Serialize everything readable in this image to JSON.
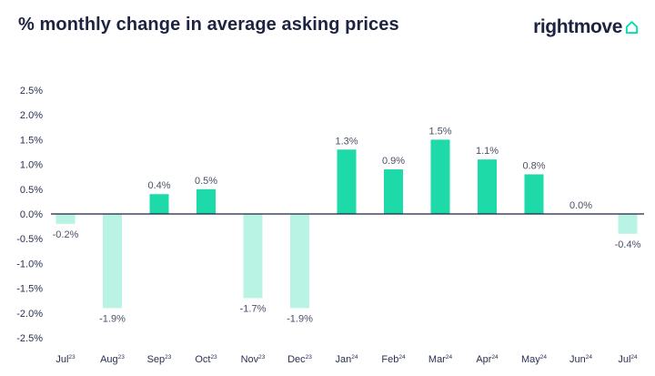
{
  "title": "% monthly change in average asking prices",
  "brand": {
    "name": "rightmove",
    "icon": "house-outline-icon",
    "accent": "#00deb6"
  },
  "colors": {
    "positive": "#1ed9a8",
    "negative": "#b9f3e3",
    "text": "#1d2340"
  },
  "chart_data": {
    "type": "bar",
    "title": "% monthly change in average asking prices",
    "xlabel": "",
    "ylabel": "",
    "ylim": [
      -2.5,
      2.5
    ],
    "yticks": [
      "2.5%",
      "2.0%",
      "1.5%",
      "1.0%",
      "0.5%",
      "0.0%",
      "-0.5%",
      "-1.0%",
      "-1.5%",
      "-2.0%",
      "-2.5%"
    ],
    "ytick_values": [
      2.5,
      2.0,
      1.5,
      1.0,
      0.5,
      0.0,
      -0.5,
      -1.0,
      -1.5,
      -2.0,
      -2.5
    ],
    "categories": [
      {
        "month": "Jul",
        "year": "23"
      },
      {
        "month": "Aug",
        "year": "23"
      },
      {
        "month": "Sep",
        "year": "23"
      },
      {
        "month": "Oct",
        "year": "23"
      },
      {
        "month": "Nov",
        "year": "23"
      },
      {
        "month": "Dec",
        "year": "23"
      },
      {
        "month": "Jan",
        "year": "24"
      },
      {
        "month": "Feb",
        "year": "24"
      },
      {
        "month": "Mar",
        "year": "24"
      },
      {
        "month": "Apr",
        "year": "24"
      },
      {
        "month": "May",
        "year": "24"
      },
      {
        "month": "Jun",
        "year": "24"
      },
      {
        "month": "Jul",
        "year": "24"
      }
    ],
    "values": [
      -0.2,
      -1.9,
      0.4,
      0.5,
      -1.7,
      -1.9,
      1.3,
      0.9,
      1.5,
      1.1,
      0.8,
      0.0,
      -0.4
    ],
    "data_labels": [
      "-0.2%",
      "-1.9%",
      "0.4%",
      "0.5%",
      "-1.7%",
      "-1.9%",
      "1.3%",
      "0.9%",
      "1.5%",
      "1.1%",
      "0.8%",
      "0.0%",
      "-0.4%"
    ],
    "grid": false,
    "legend": "none"
  }
}
